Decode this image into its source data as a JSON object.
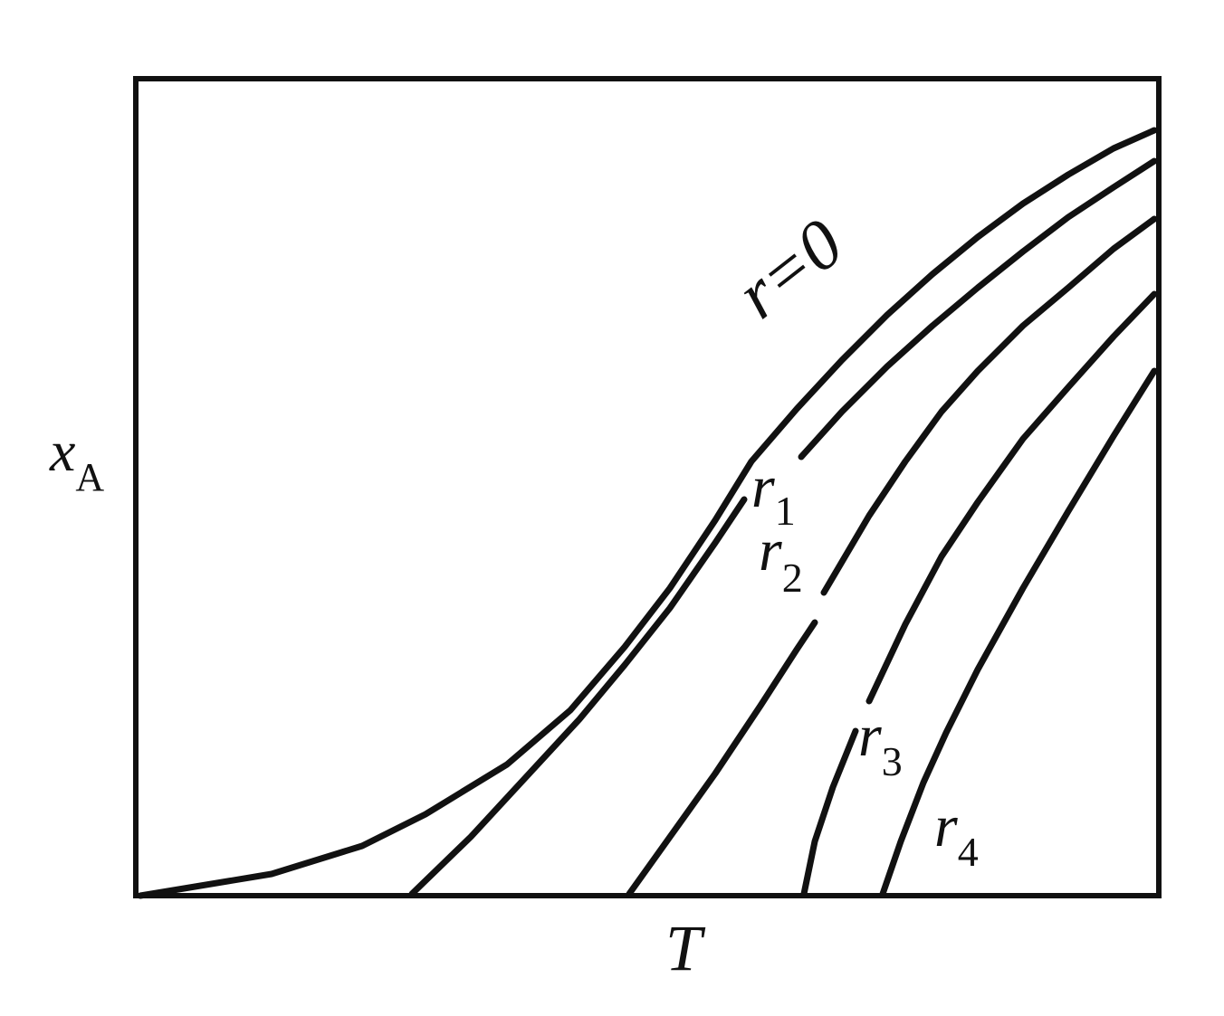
{
  "axes": {
    "y_label": {
      "symbol": "x",
      "subscript": "A"
    },
    "x_label": "T"
  },
  "curves": [
    {
      "label": "r=0"
    },
    {
      "symbol": "r",
      "subscript": "1"
    },
    {
      "symbol": "r",
      "subscript": "2"
    },
    {
      "symbol": "r",
      "subscript": "3"
    },
    {
      "symbol": "r",
      "subscript": "4"
    }
  ]
}
